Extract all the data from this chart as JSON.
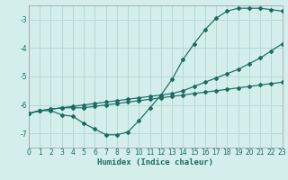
{
  "xlabel": "Humidex (Indice chaleur)",
  "background_color": "#d4eeeb",
  "grid_color": "#b5d9d5",
  "line_color": "#1a6b62",
  "xlim": [
    0,
    23
  ],
  "ylim": [
    -7.5,
    -2.5
  ],
  "yticks": [
    -7,
    -6,
    -5,
    -4,
    -3
  ],
  "xticks": [
    0,
    1,
    2,
    3,
    4,
    5,
    6,
    7,
    8,
    9,
    10,
    11,
    12,
    13,
    14,
    15,
    16,
    17,
    18,
    19,
    20,
    21,
    22,
    23
  ],
  "s1_x": [
    0,
    1,
    2,
    3,
    4,
    5,
    6,
    7,
    8,
    9,
    10,
    11,
    12,
    13,
    14,
    15,
    16,
    17,
    18,
    19,
    20,
    21,
    22,
    23
  ],
  "s1_y": [
    -6.3,
    -6.2,
    -6.2,
    -6.35,
    -6.4,
    -6.65,
    -6.85,
    -7.05,
    -7.05,
    -6.95,
    -6.55,
    -6.1,
    -5.65,
    -5.1,
    -4.4,
    -3.85,
    -3.35,
    -2.95,
    -2.7,
    -2.6,
    -2.6,
    -2.6,
    -2.65,
    -2.7
  ],
  "s2_x": [
    0,
    1,
    2,
    3,
    4,
    5,
    6,
    7,
    8,
    9,
    10,
    11,
    12,
    13,
    14,
    15,
    16,
    17,
    18,
    19,
    20,
    21,
    22,
    23
  ],
  "s2_y": [
    -6.3,
    -6.2,
    -6.15,
    -6.1,
    -6.1,
    -6.1,
    -6.05,
    -6.0,
    -5.95,
    -5.9,
    -5.85,
    -5.8,
    -5.75,
    -5.7,
    -5.65,
    -5.6,
    -5.55,
    -5.5,
    -5.45,
    -5.4,
    -5.35,
    -5.3,
    -5.25,
    -5.2
  ],
  "s3_x": [
    0,
    1,
    2,
    3,
    4,
    5,
    6,
    7,
    8,
    9,
    10,
    11,
    12,
    13,
    14,
    15,
    16,
    17,
    18,
    19,
    20,
    21,
    22,
    23
  ],
  "s3_y": [
    -6.3,
    -6.2,
    -6.15,
    -6.1,
    -6.05,
    -6.0,
    -5.95,
    -5.9,
    -5.85,
    -5.8,
    -5.75,
    -5.7,
    -5.65,
    -5.6,
    -5.5,
    -5.35,
    -5.2,
    -5.05,
    -4.9,
    -4.75,
    -4.55,
    -4.35,
    -4.1,
    -3.85
  ]
}
